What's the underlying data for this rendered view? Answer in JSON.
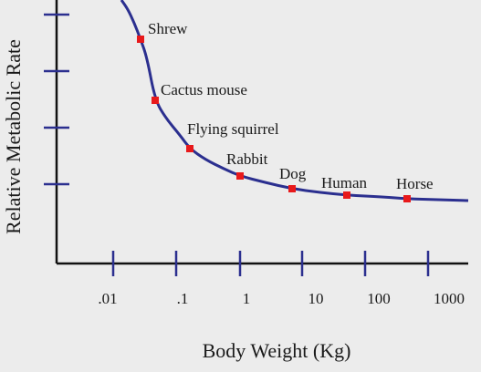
{
  "chart_data": {
    "type": "line",
    "title": "",
    "xlabel": "Body Weight (Kg)",
    "ylabel": "Relative Metabolic Rate",
    "x_scale": "log",
    "xlim": [
      0.0025,
      3500
    ],
    "ylim": [
      0,
      1
    ],
    "x_ticks": [
      0.01,
      0.1,
      1,
      10,
      100,
      1000
    ],
    "x_tick_labels": [
      ".01",
      ".1",
      "1",
      "10",
      "100",
      "1000"
    ],
    "y_tick_count": 4,
    "y_tick_labels": [],
    "grid": false,
    "legend": "none",
    "colors": {
      "curve": "#2b2f8f",
      "points": "#e8191b",
      "axes": "#111111",
      "ticks": "#2b2f8f",
      "background": "#ececec"
    },
    "points": [
      {
        "label": "Shrew",
        "x": 0.025,
        "y": 0.89
      },
      {
        "label": "Cactus mouse",
        "x": 0.04,
        "y": 0.66
      },
      {
        "label": "Flying squirrel",
        "x": 0.15,
        "y": 0.44
      },
      {
        "label": "Rabbit",
        "x": 1.0,
        "y": 0.34
      },
      {
        "label": "Dog",
        "x": 6.0,
        "y": 0.29
      },
      {
        "label": "Human",
        "x": 40,
        "y": 0.27
      },
      {
        "label": "Horse",
        "x": 400,
        "y": 0.25
      }
    ],
    "curve": [
      {
        "x": 0.018,
        "y": 1.05
      },
      {
        "x": 0.022,
        "y": 0.96
      },
      {
        "x": 0.025,
        "y": 0.89
      },
      {
        "x": 0.032,
        "y": 0.77
      },
      {
        "x": 0.04,
        "y": 0.66
      },
      {
        "x": 0.06,
        "y": 0.56
      },
      {
        "x": 0.1,
        "y": 0.48
      },
      {
        "x": 0.15,
        "y": 0.44
      },
      {
        "x": 0.3,
        "y": 0.38
      },
      {
        "x": 0.6,
        "y": 0.355
      },
      {
        "x": 1.0,
        "y": 0.34
      },
      {
        "x": 3.0,
        "y": 0.305
      },
      {
        "x": 6.0,
        "y": 0.29
      },
      {
        "x": 20,
        "y": 0.277
      },
      {
        "x": 40,
        "y": 0.27
      },
      {
        "x": 120,
        "y": 0.26
      },
      {
        "x": 400,
        "y": 0.25
      },
      {
        "x": 1000,
        "y": 0.245
      },
      {
        "x": 3500,
        "y": 0.24
      }
    ]
  }
}
